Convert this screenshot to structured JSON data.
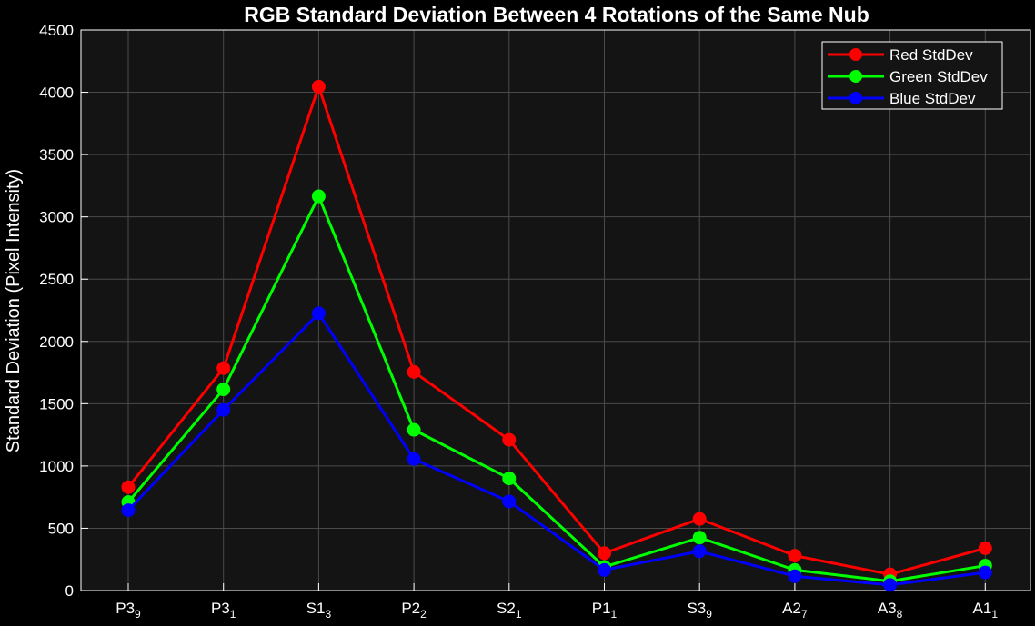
{
  "chart_data": {
    "type": "line",
    "title": "RGB Standard Deviation Between 4 Rotations of the Same Nub",
    "ylabel": "Standard Deviation (Pixel Intensity)",
    "xlabel": "",
    "ylim": [
      0,
      4500
    ],
    "yticks": [
      0,
      500,
      1000,
      1500,
      2000,
      2500,
      3000,
      3500,
      4000,
      4500
    ],
    "grid": true,
    "legend_position": "top-right",
    "categories": [
      {
        "base": "P3",
        "sub": "9"
      },
      {
        "base": "P3",
        "sub": "1"
      },
      {
        "base": "S1",
        "sub": "3"
      },
      {
        "base": "P2",
        "sub": "2"
      },
      {
        "base": "S2",
        "sub": "1"
      },
      {
        "base": "P1",
        "sub": "1"
      },
      {
        "base": "S3",
        "sub": "9"
      },
      {
        "base": "A2",
        "sub": "7"
      },
      {
        "base": "A3",
        "sub": "8"
      },
      {
        "base": "A1",
        "sub": "1"
      }
    ],
    "series": [
      {
        "name": "Red StdDev",
        "color": "#ff0000",
        "values": [
          830,
          1785,
          4045,
          1755,
          1210,
          300,
          575,
          280,
          130,
          340
        ]
      },
      {
        "name": "Green StdDev",
        "color": "#00ff00",
        "values": [
          710,
          1615,
          3165,
          1290,
          900,
          190,
          425,
          165,
          75,
          200
        ]
      },
      {
        "name": "Blue StdDev",
        "color": "#0000ff",
        "values": [
          645,
          1450,
          2225,
          1055,
          715,
          165,
          315,
          115,
          45,
          145
        ]
      }
    ]
  },
  "colors": {
    "background": "#000000",
    "plot_area": "#141414",
    "grid": "#4a4a4a",
    "text": "#ffffff"
  }
}
